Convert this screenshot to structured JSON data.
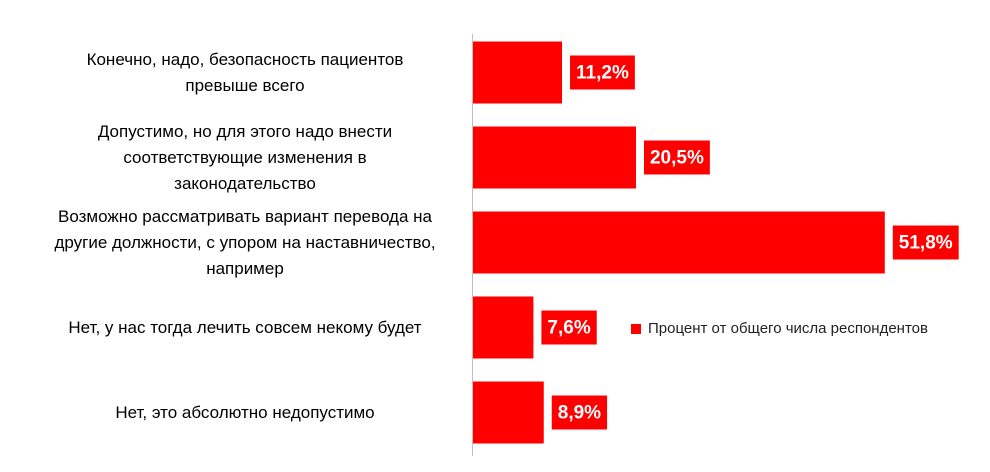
{
  "chart_data": {
    "type": "hbar",
    "categories": [
      "Конечно, надо, безопасность пациентов\nпревыше всего",
      "Допустимо, но для этого надо внести\nсоответствующие изменения в\nзаконодательство",
      "Возможно рассматривать вариант перевода на\nдругие должности, с упором на наставничество,\nнапример",
      "Нет, у нас тогда лечить совсем некому будет",
      "Нет, это абсолютно недопустимо"
    ],
    "series": [
      {
        "name": "Процент от общего числа респондентов",
        "color": "#ff0000",
        "values": [
          11.2,
          20.5,
          51.8,
          7.6,
          8.9
        ],
        "value_labels": [
          "11,2%",
          "20,5%",
          "51,8%",
          "7,6%",
          "8,9%"
        ]
      }
    ]
  }
}
